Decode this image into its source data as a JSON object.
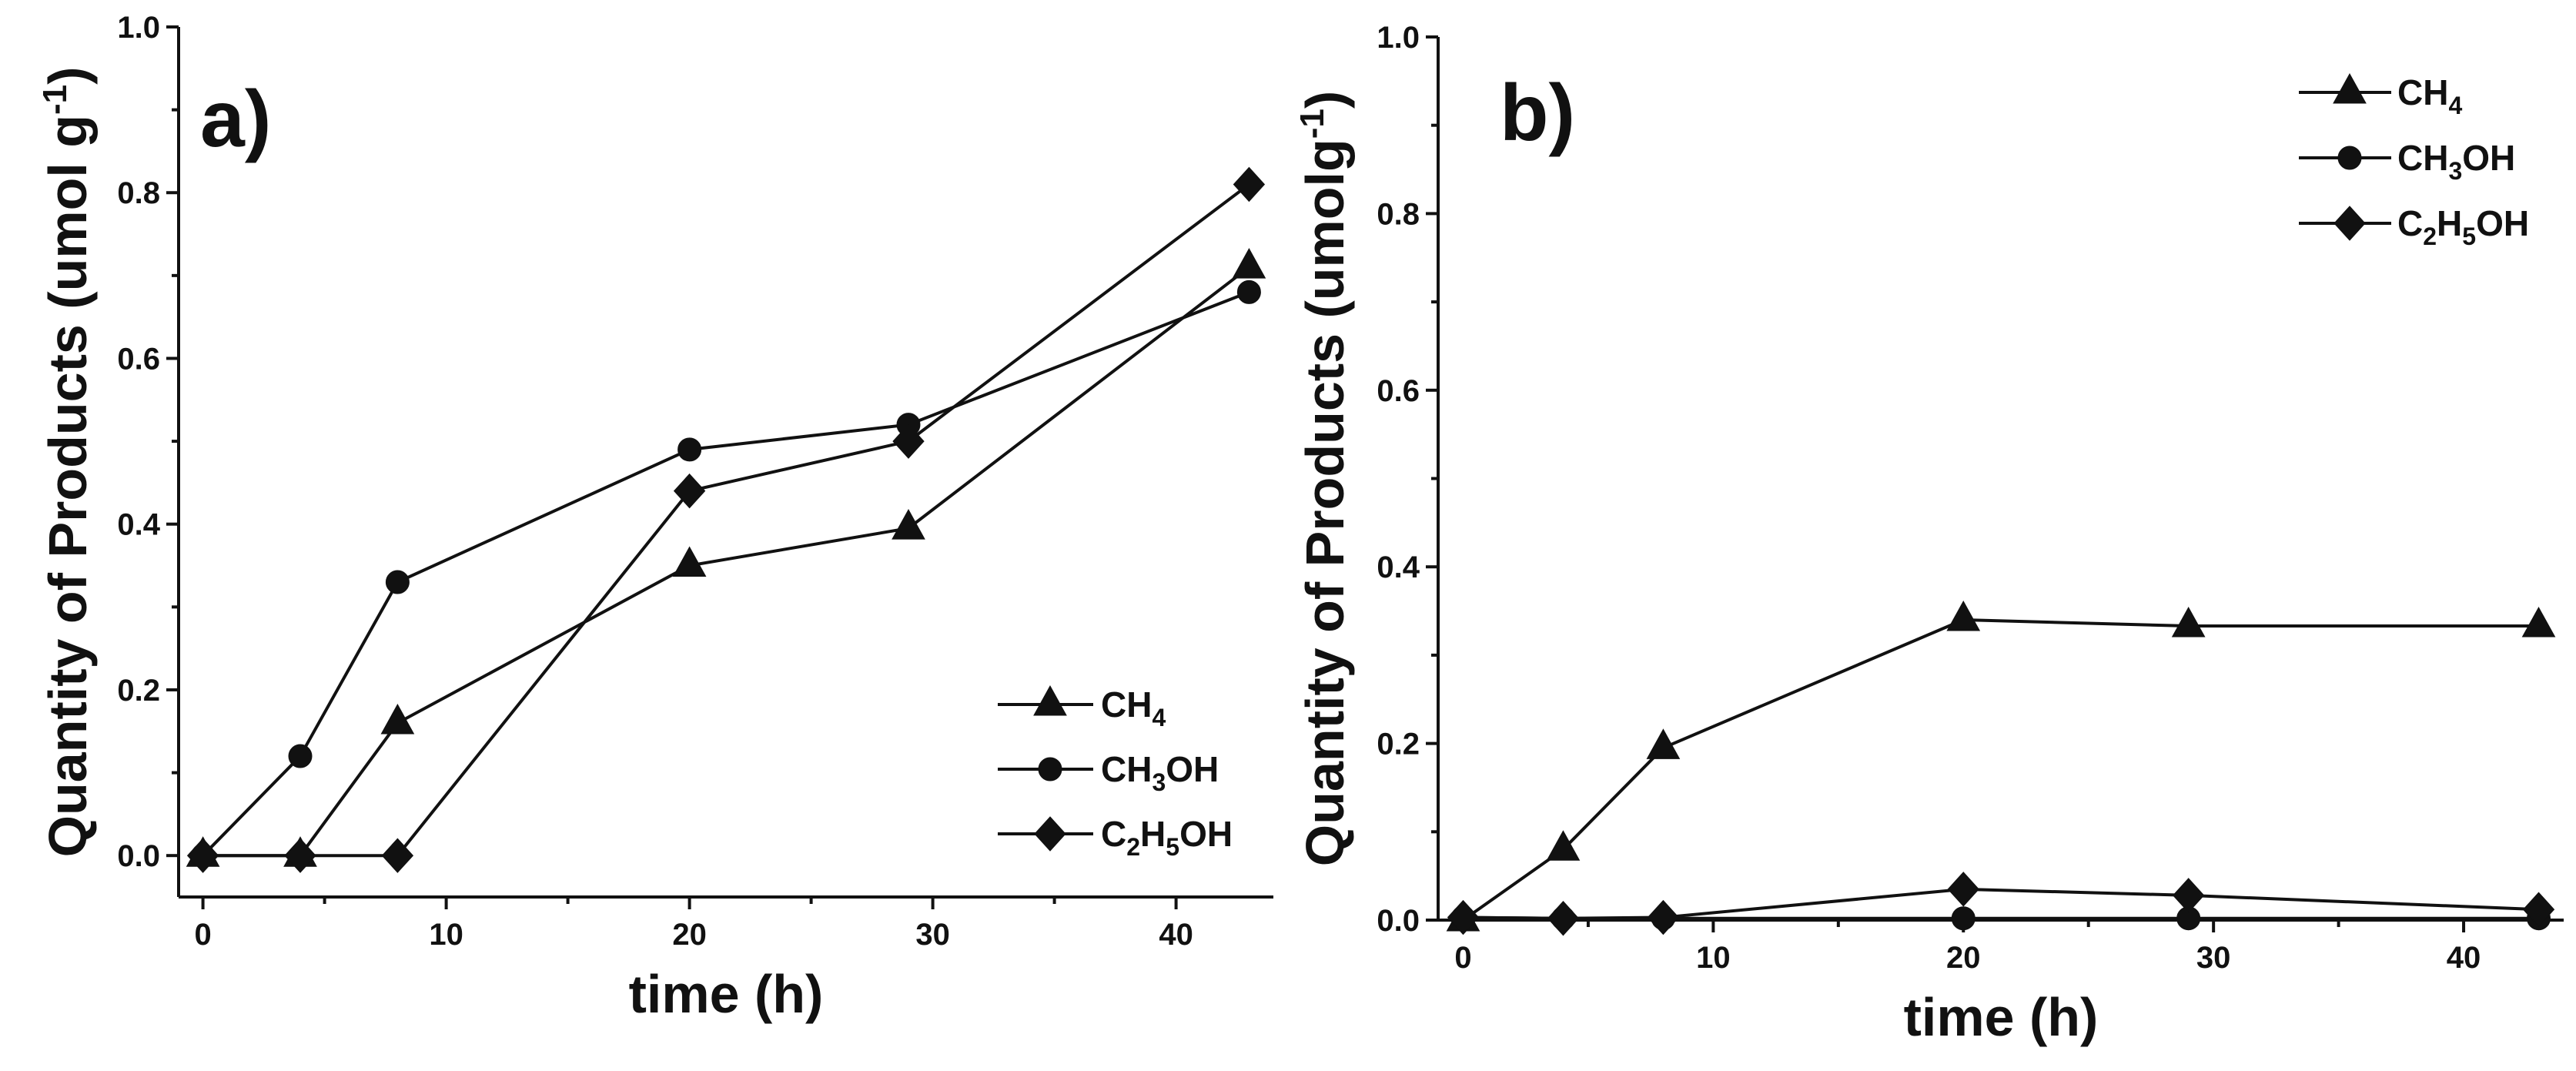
{
  "chart_data": [
    {
      "type": "line",
      "panel_label": "a)",
      "xlabel": "time (h)",
      "ylabel": "Quantity of Products  (umol g",
      "ylabel_sup": "-1",
      "ylabel_close": ")",
      "xlim": [
        -1,
        44
      ],
      "ylim": [
        -0.05,
        1.0
      ],
      "xticks": [
        0,
        10,
        20,
        30,
        40
      ],
      "yticks": [
        0.0,
        0.2,
        0.4,
        0.6,
        0.8,
        1.0
      ],
      "ytick_labels": [
        "0.0",
        "0.2",
        "0.4",
        "0.6",
        "0.8",
        "1.0"
      ],
      "legend_position": "bottom-right",
      "series": [
        {
          "name": "CH4",
          "name_parts": [
            "CH",
            "4"
          ],
          "marker": "triangle",
          "x": [
            0,
            4,
            8,
            20,
            29,
            43
          ],
          "y": [
            0.0,
            0.0,
            0.16,
            0.35,
            0.395,
            0.71
          ]
        },
        {
          "name": "CH3OH",
          "name_parts": [
            "CH",
            "3",
            "OH"
          ],
          "marker": "circle",
          "x": [
            0,
            4,
            8,
            20,
            29,
            43
          ],
          "y": [
            0.0,
            0.12,
            0.33,
            0.49,
            0.52,
            0.68
          ]
        },
        {
          "name": "C2H5OH",
          "name_parts": [
            "C",
            "2",
            "H",
            "5",
            "OH"
          ],
          "marker": "diamond",
          "x": [
            0,
            4,
            8,
            20,
            29,
            43
          ],
          "y": [
            0.0,
            0.0,
            0.0,
            0.44,
            0.5,
            0.81
          ]
        }
      ]
    },
    {
      "type": "line",
      "panel_label": "b)",
      "xlabel": "time (h)",
      "ylabel": "Quantity of Products  (umolg",
      "ylabel_sup": "-1",
      "ylabel_close": ")",
      "xlim": [
        -1,
        44
      ],
      "ylim": [
        0.0,
        1.0
      ],
      "xticks": [
        0,
        10,
        20,
        30,
        40
      ],
      "yticks": [
        0.0,
        0.2,
        0.4,
        0.6,
        0.8,
        1.0
      ],
      "ytick_labels": [
        "0.0",
        "0.2",
        "0.4",
        "0.6",
        "0.8",
        "1.0"
      ],
      "legend_position": "top-right",
      "series": [
        {
          "name": "CH4",
          "name_parts": [
            "CH",
            "4"
          ],
          "marker": "triangle",
          "x": [
            0,
            4,
            8,
            20,
            29,
            43
          ],
          "y": [
            0.0,
            0.08,
            0.195,
            0.34,
            0.333,
            0.333
          ]
        },
        {
          "name": "CH3OH",
          "name_parts": [
            "CH",
            "3",
            "OH"
          ],
          "marker": "circle",
          "x": [
            0,
            4,
            8,
            20,
            29,
            43
          ],
          "y": [
            0.003,
            0.002,
            0.002,
            0.002,
            0.002,
            0.002
          ]
        },
        {
          "name": "C2H5OH",
          "name_parts": [
            "C",
            "2",
            "H",
            "5",
            "OH"
          ],
          "marker": "diamond",
          "x": [
            0,
            4,
            8,
            20,
            29,
            43
          ],
          "y": [
            0.003,
            0.002,
            0.003,
            0.035,
            0.028,
            0.012
          ]
        }
      ]
    }
  ]
}
